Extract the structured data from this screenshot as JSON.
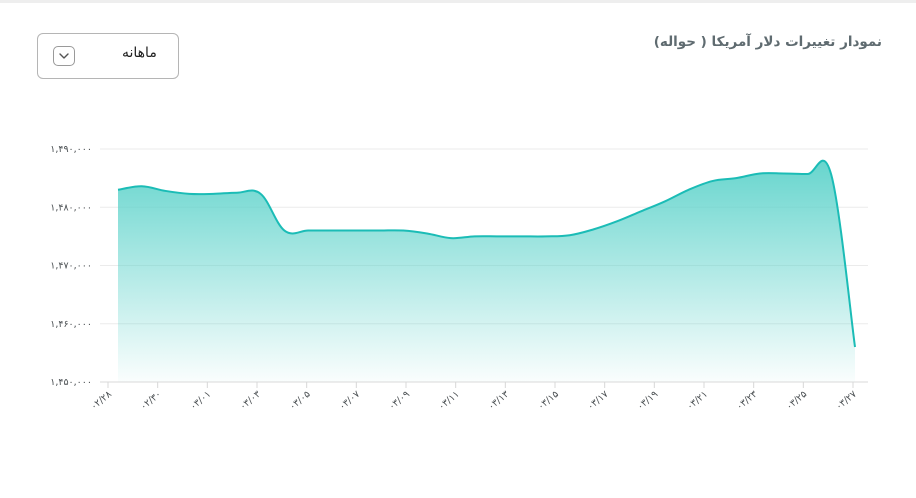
{
  "header": {
    "title": "نمودار تغییرات دلار آمریکا ( حواله)"
  },
  "period_select": {
    "selected": "ماهانه",
    "icon": "chevron-down-icon"
  },
  "colors": {
    "line": "#1bbcb6",
    "fill_top": "#5fd3cb",
    "grid": "#ebebeb",
    "axis": "#d8d8d8"
  },
  "chart_data": {
    "type": "area",
    "title": "نمودار تغییرات دلار آمریکا ( حواله)",
    "xlabel": "",
    "ylabel": "",
    "ylim": [
      1450000,
      1490000
    ],
    "yticks": [
      1450000,
      1460000,
      1470000,
      1480000,
      1490000
    ],
    "ytick_labels": [
      "۱,۴۵۰,۰۰۰",
      "۱,۴۶۰,۰۰۰",
      "۱,۴۷۰,۰۰۰",
      "۱,۴۸۰,۰۰۰",
      "۱,۴۹۰,۰۰۰"
    ],
    "xtick_labels": [
      "۰۲/۲۸",
      "۰۲/۳۰",
      "۰۳/۰۱",
      "۰۳/۰۳",
      "۰۳/۰۵",
      "۰۳/۰۷",
      "۰۳/۰۹",
      "۰۳/۱۱",
      "۰۳/۱۳",
      "۰۳/۱۵",
      "۰۳/۱۷",
      "۰۳/۱۹",
      "۰۳/۲۱",
      "۰۳/۲۳",
      "۰۳/۲۵",
      "۰۳/۲۷"
    ],
    "x": [
      "02/28",
      "02/29",
      "02/30",
      "02/31",
      "03/01",
      "03/02",
      "03/03",
      "03/04",
      "03/05",
      "03/06",
      "03/07",
      "03/08",
      "03/09",
      "03/10",
      "03/11",
      "03/12",
      "03/13",
      "03/14",
      "03/15",
      "03/16",
      "03/17",
      "03/18",
      "03/19",
      "03/20",
      "03/21",
      "03/22",
      "03/23",
      "03/24",
      "03/25",
      "03/26",
      "03/27",
      "03/27 (last)"
    ],
    "values": [
      1483000,
      1483600,
      1482800,
      1482300,
      1482300,
      1482500,
      1482300,
      1476000,
      1476000,
      1476000,
      1476000,
      1476000,
      1476000,
      1475500,
      1474700,
      1475000,
      1475000,
      1475000,
      1475000,
      1475200,
      1476200,
      1477600,
      1479300,
      1481000,
      1483000,
      1484500,
      1485000,
      1485800,
      1485800,
      1485700,
      1485600,
      1456000
    ],
    "grid": true,
    "legend": "none"
  }
}
